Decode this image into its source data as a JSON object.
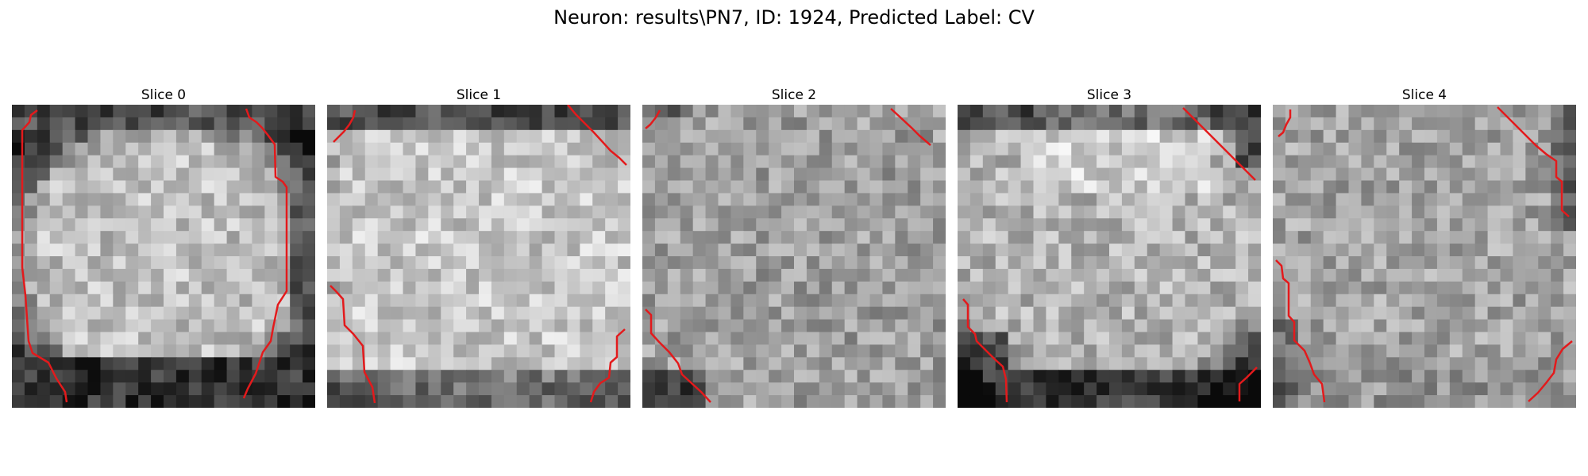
{
  "figure": {
    "suptitle": "Neuron: results\\PN7, ID: 1924, Predicted Label: CV"
  },
  "slices": [
    {
      "title": "Slice 0"
    },
    {
      "title": "Slice 1"
    },
    {
      "title": "Slice 2"
    },
    {
      "title": "Slice 3"
    },
    {
      "title": "Slice 4"
    }
  ],
  "colors": {
    "contour": "#e31a1c",
    "background": "#ffffff",
    "text": "#000000"
  }
}
